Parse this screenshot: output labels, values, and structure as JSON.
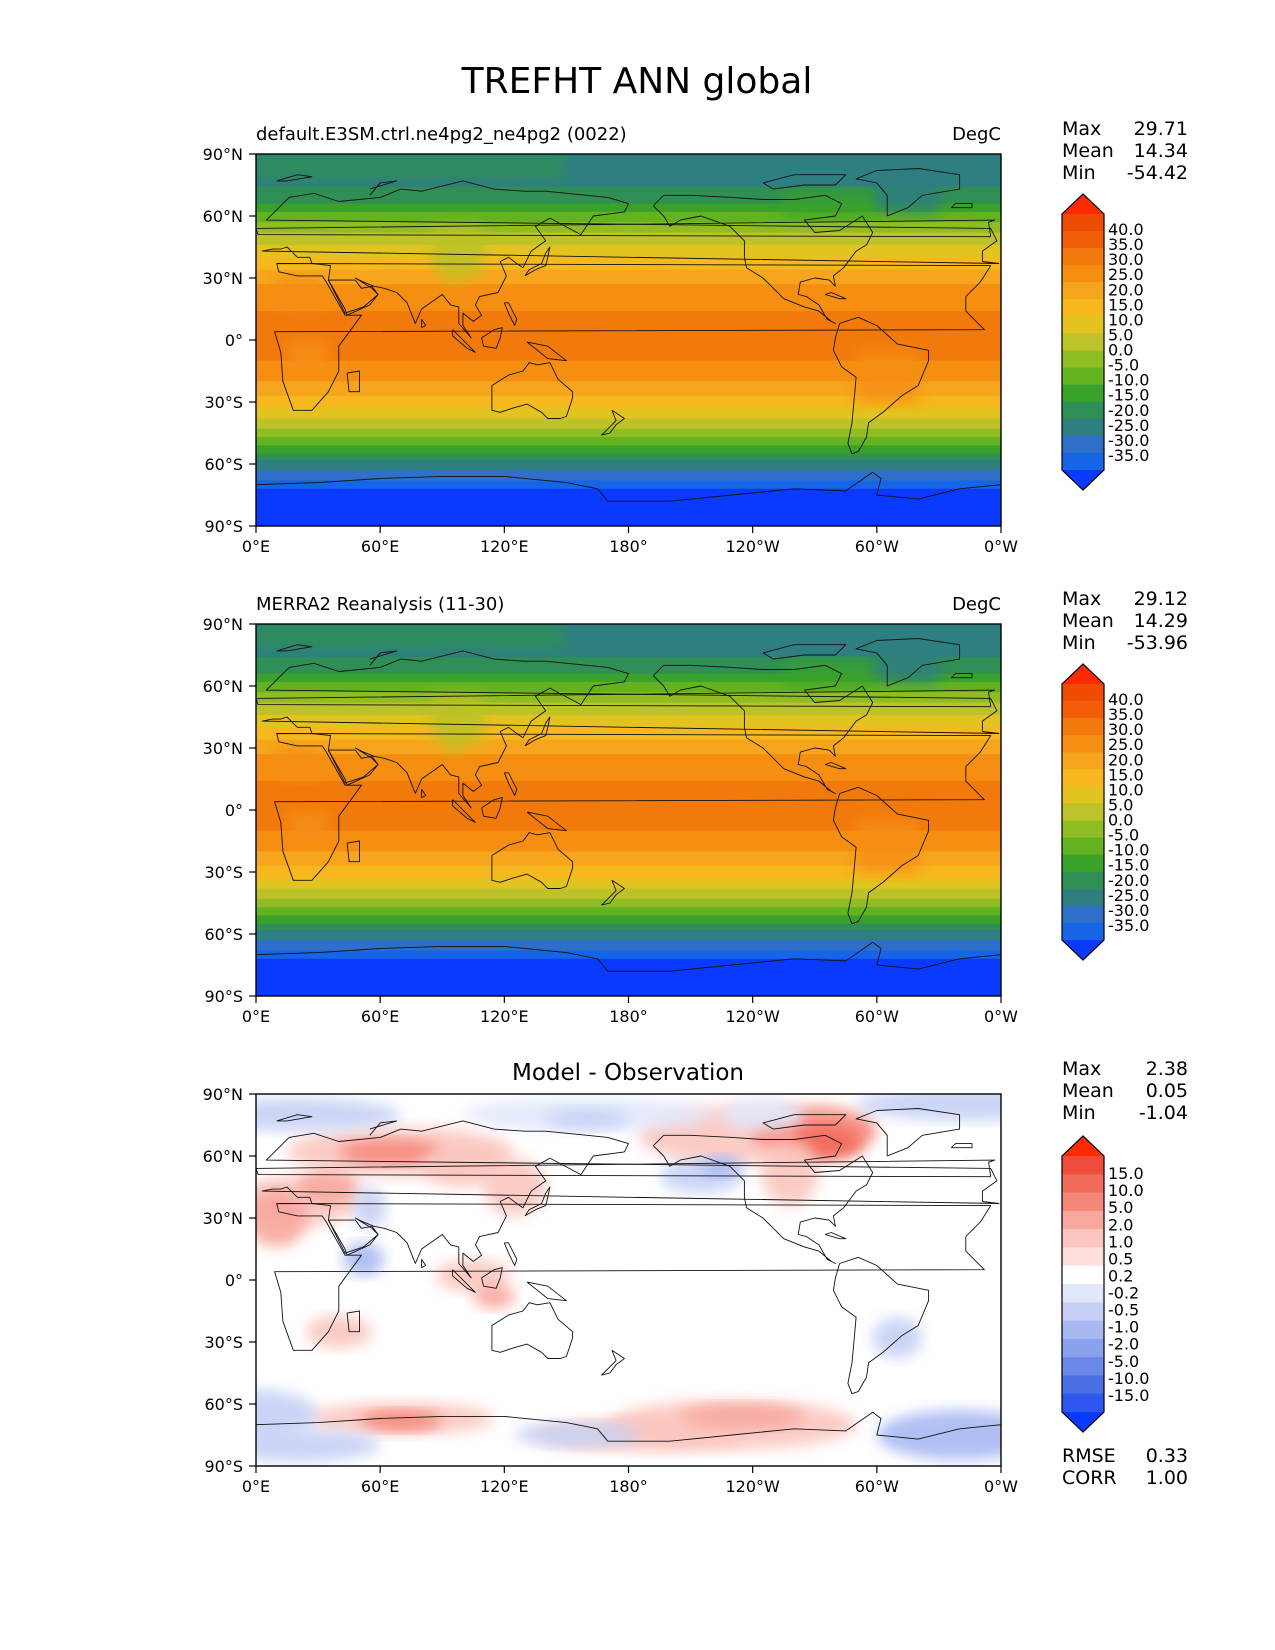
{
  "title": "TREFHT ANN global",
  "lon_ticks": [
    "0°E",
    "60°E",
    "120°E",
    "180°",
    "120°W",
    "60°W",
    "0°W"
  ],
  "lat_ticks": [
    "90°N",
    "60°N",
    "30°N",
    "0°",
    "30°S",
    "60°S",
    "90°S"
  ],
  "abs_colors": [
    "#0a3aff",
    "#1565e6",
    "#2f6fc9",
    "#2f7f80",
    "#2f8f55",
    "#3aa12a",
    "#63b321",
    "#8fbd23",
    "#bcc227",
    "#e3c31f",
    "#f6b81c",
    "#f7a51d",
    "#f68e12",
    "#f27a0c",
    "#f25e08",
    "#f04b02",
    "#ff2a00"
  ],
  "diff_colors": [
    "#0a3aff",
    "#2e56f0",
    "#4c6fe6",
    "#6a89e6",
    "#8aa2ed",
    "#a8b8f2",
    "#c6d0f5",
    "#e2e8fb",
    "#ffffff",
    "#fde0dc",
    "#fbc6bf",
    "#f8a79d",
    "#f5877a",
    "#f26a5a",
    "#ef4d3c",
    "#ff2a00"
  ],
  "panels": [
    {
      "id": "test",
      "left_title": "default.E3SM.ctrl.ne4pg2_ne4pg2 (0022)",
      "center_title": "",
      "right_title": "DegC",
      "stats": [
        {
          "label": "Max",
          "value": "29.71"
        },
        {
          "label": "Mean",
          "value": "14.34"
        },
        {
          "label": "Min",
          "value": "-54.42"
        }
      ],
      "colorbar_labels": [
        "40.0",
        "35.0",
        "30.0",
        "25.0",
        "20.0",
        "15.0",
        "10.0",
        "5.0",
        "0.0",
        "-5.0",
        "-10.0",
        "-15.0",
        "-20.0",
        "-25.0",
        "-30.0",
        "-35.0"
      ],
      "colormap": "abs"
    },
    {
      "id": "ref",
      "left_title": "MERRA2 Reanalysis (11-30)",
      "center_title": "",
      "right_title": "DegC",
      "stats": [
        {
          "label": "Max",
          "value": "29.12"
        },
        {
          "label": "Mean",
          "value": "14.29"
        },
        {
          "label": "Min",
          "value": "-53.96"
        }
      ],
      "colorbar_labels": [
        "40.0",
        "35.0",
        "30.0",
        "25.0",
        "20.0",
        "15.0",
        "10.0",
        "5.0",
        "0.0",
        "-5.0",
        "-10.0",
        "-15.0",
        "-20.0",
        "-25.0",
        "-30.0",
        "-35.0"
      ],
      "colormap": "abs"
    },
    {
      "id": "diff",
      "left_title": "",
      "center_title": "Model - Observation",
      "right_title": "",
      "stats": [
        {
          "label": "Max",
          "value": "2.38"
        },
        {
          "label": "Mean",
          "value": "0.05"
        },
        {
          "label": "Min",
          "value": "-1.04"
        }
      ],
      "colorbar_labels": [
        "15.0",
        "10.0",
        "5.0",
        "2.0",
        "1.0",
        "0.5",
        "0.2",
        "-0.2",
        "-0.5",
        "-1.0",
        "-2.0",
        "-5.0",
        "-10.0",
        "-15.0"
      ],
      "colormap": "diff",
      "metrics": [
        {
          "label": "RMSE",
          "value": "0.33"
        },
        {
          "label": "CORR",
          "value": "1.00"
        }
      ]
    }
  ]
}
